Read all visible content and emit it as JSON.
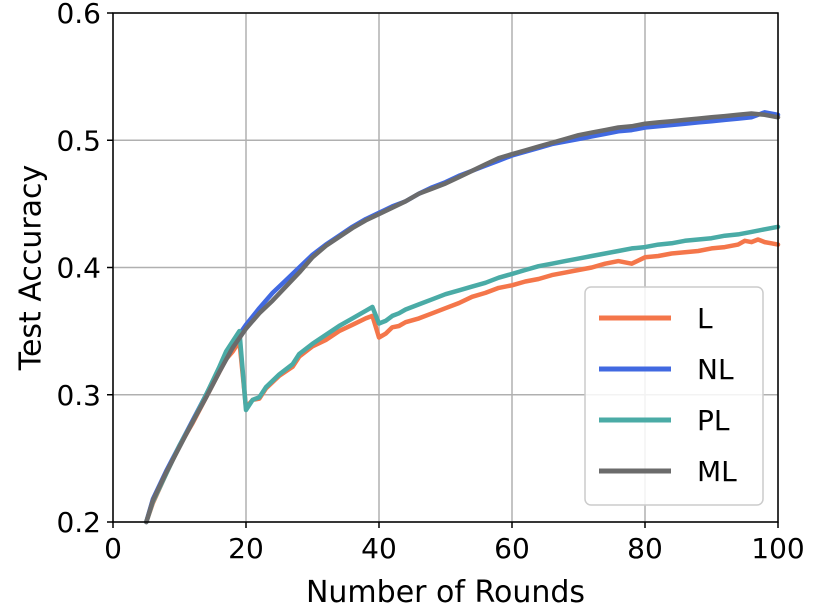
{
  "chart_data": {
    "type": "line",
    "title": "",
    "xlabel": "Number of Rounds",
    "ylabel": "Test Accuracy",
    "xlim": [
      0,
      100
    ],
    "ylim": [
      0.2,
      0.6
    ],
    "xticks": [
      0,
      20,
      40,
      60,
      80,
      100
    ],
    "yticks": [
      0.2,
      0.3,
      0.4,
      0.5,
      0.6
    ],
    "xtick_labels": [
      "0",
      "20",
      "40",
      "60",
      "80",
      "100"
    ],
    "ytick_labels": [
      "0.2",
      "0.3",
      "0.4",
      "0.5",
      "0.6"
    ],
    "grid": true,
    "legend_position": "lower-right",
    "series": [
      {
        "name": "L",
        "color": "#f4764a",
        "x": [
          5,
          6,
          8,
          10,
          12,
          14,
          16,
          17,
          18,
          19,
          20,
          21,
          22,
          23,
          25,
          27,
          28,
          30,
          32,
          34,
          36,
          38,
          39,
          40,
          41,
          42,
          43,
          44,
          46,
          48,
          50,
          52,
          54,
          56,
          58,
          60,
          62,
          64,
          66,
          68,
          70,
          72,
          74,
          76,
          78,
          80,
          82,
          84,
          86,
          88,
          90,
          92,
          94,
          95,
          96,
          97,
          98,
          99,
          100
        ],
        "y": [
          0.2,
          0.215,
          0.238,
          0.26,
          0.278,
          0.298,
          0.318,
          0.328,
          0.334,
          0.342,
          0.29,
          0.296,
          0.297,
          0.305,
          0.315,
          0.322,
          0.33,
          0.338,
          0.343,
          0.35,
          0.355,
          0.36,
          0.362,
          0.345,
          0.348,
          0.353,
          0.354,
          0.357,
          0.36,
          0.364,
          0.368,
          0.372,
          0.377,
          0.38,
          0.384,
          0.386,
          0.389,
          0.391,
          0.394,
          0.396,
          0.398,
          0.4,
          0.403,
          0.405,
          0.403,
          0.408,
          0.409,
          0.411,
          0.412,
          0.413,
          0.415,
          0.416,
          0.418,
          0.421,
          0.42,
          0.422,
          0.42,
          0.419,
          0.418
        ]
      },
      {
        "name": "NL",
        "color": "#4169e1",
        "x": [
          5,
          6,
          8,
          10,
          12,
          14,
          16,
          18,
          20,
          22,
          24,
          26,
          28,
          30,
          32,
          34,
          36,
          38,
          40,
          42,
          44,
          46,
          48,
          50,
          52,
          54,
          56,
          58,
          60,
          62,
          64,
          66,
          68,
          70,
          72,
          74,
          76,
          78,
          80,
          82,
          84,
          86,
          88,
          90,
          92,
          94,
          96,
          98,
          100
        ],
        "y": [
          0.2,
          0.218,
          0.24,
          0.26,
          0.28,
          0.3,
          0.32,
          0.34,
          0.355,
          0.368,
          0.38,
          0.39,
          0.4,
          0.41,
          0.418,
          0.425,
          0.432,
          0.438,
          0.443,
          0.448,
          0.452,
          0.458,
          0.463,
          0.467,
          0.472,
          0.476,
          0.48,
          0.484,
          0.488,
          0.491,
          0.494,
          0.497,
          0.499,
          0.501,
          0.503,
          0.505,
          0.507,
          0.508,
          0.51,
          0.511,
          0.512,
          0.513,
          0.514,
          0.515,
          0.516,
          0.517,
          0.518,
          0.522,
          0.52
        ]
      },
      {
        "name": "PL",
        "color": "#4aaba6",
        "x": [
          5,
          6,
          8,
          10,
          12,
          14,
          16,
          17,
          18,
          19,
          20,
          21,
          22,
          23,
          25,
          27,
          28,
          30,
          32,
          34,
          36,
          38,
          39,
          40,
          41,
          42,
          43,
          44,
          46,
          48,
          50,
          52,
          54,
          56,
          58,
          60,
          62,
          64,
          66,
          68,
          70,
          72,
          74,
          76,
          78,
          80,
          82,
          84,
          86,
          88,
          90,
          92,
          94,
          96,
          98,
          100
        ],
        "y": [
          0.2,
          0.216,
          0.238,
          0.26,
          0.279,
          0.3,
          0.322,
          0.334,
          0.342,
          0.35,
          0.288,
          0.296,
          0.298,
          0.306,
          0.316,
          0.324,
          0.332,
          0.34,
          0.347,
          0.354,
          0.36,
          0.366,
          0.369,
          0.356,
          0.358,
          0.362,
          0.364,
          0.367,
          0.371,
          0.375,
          0.379,
          0.382,
          0.385,
          0.388,
          0.392,
          0.395,
          0.398,
          0.401,
          0.403,
          0.405,
          0.407,
          0.409,
          0.411,
          0.413,
          0.415,
          0.416,
          0.418,
          0.419,
          0.421,
          0.422,
          0.423,
          0.425,
          0.426,
          0.428,
          0.43,
          0.432
        ]
      },
      {
        "name": "ML",
        "color": "#6b6b6b",
        "x": [
          5,
          6,
          8,
          10,
          12,
          14,
          16,
          18,
          20,
          22,
          24,
          26,
          28,
          30,
          32,
          34,
          36,
          38,
          40,
          42,
          44,
          46,
          48,
          50,
          52,
          54,
          56,
          58,
          60,
          62,
          64,
          66,
          68,
          70,
          72,
          74,
          76,
          78,
          80,
          82,
          84,
          86,
          88,
          90,
          92,
          94,
          96,
          98,
          100
        ],
        "y": [
          0.2,
          0.217,
          0.239,
          0.259,
          0.279,
          0.298,
          0.318,
          0.337,
          0.352,
          0.364,
          0.374,
          0.385,
          0.396,
          0.408,
          0.417,
          0.424,
          0.431,
          0.437,
          0.442,
          0.447,
          0.452,
          0.458,
          0.462,
          0.466,
          0.471,
          0.476,
          0.481,
          0.486,
          0.489,
          0.492,
          0.495,
          0.498,
          0.501,
          0.504,
          0.506,
          0.508,
          0.51,
          0.511,
          0.513,
          0.514,
          0.515,
          0.516,
          0.517,
          0.518,
          0.519,
          0.52,
          0.521,
          0.52,
          0.518
        ]
      }
    ]
  }
}
